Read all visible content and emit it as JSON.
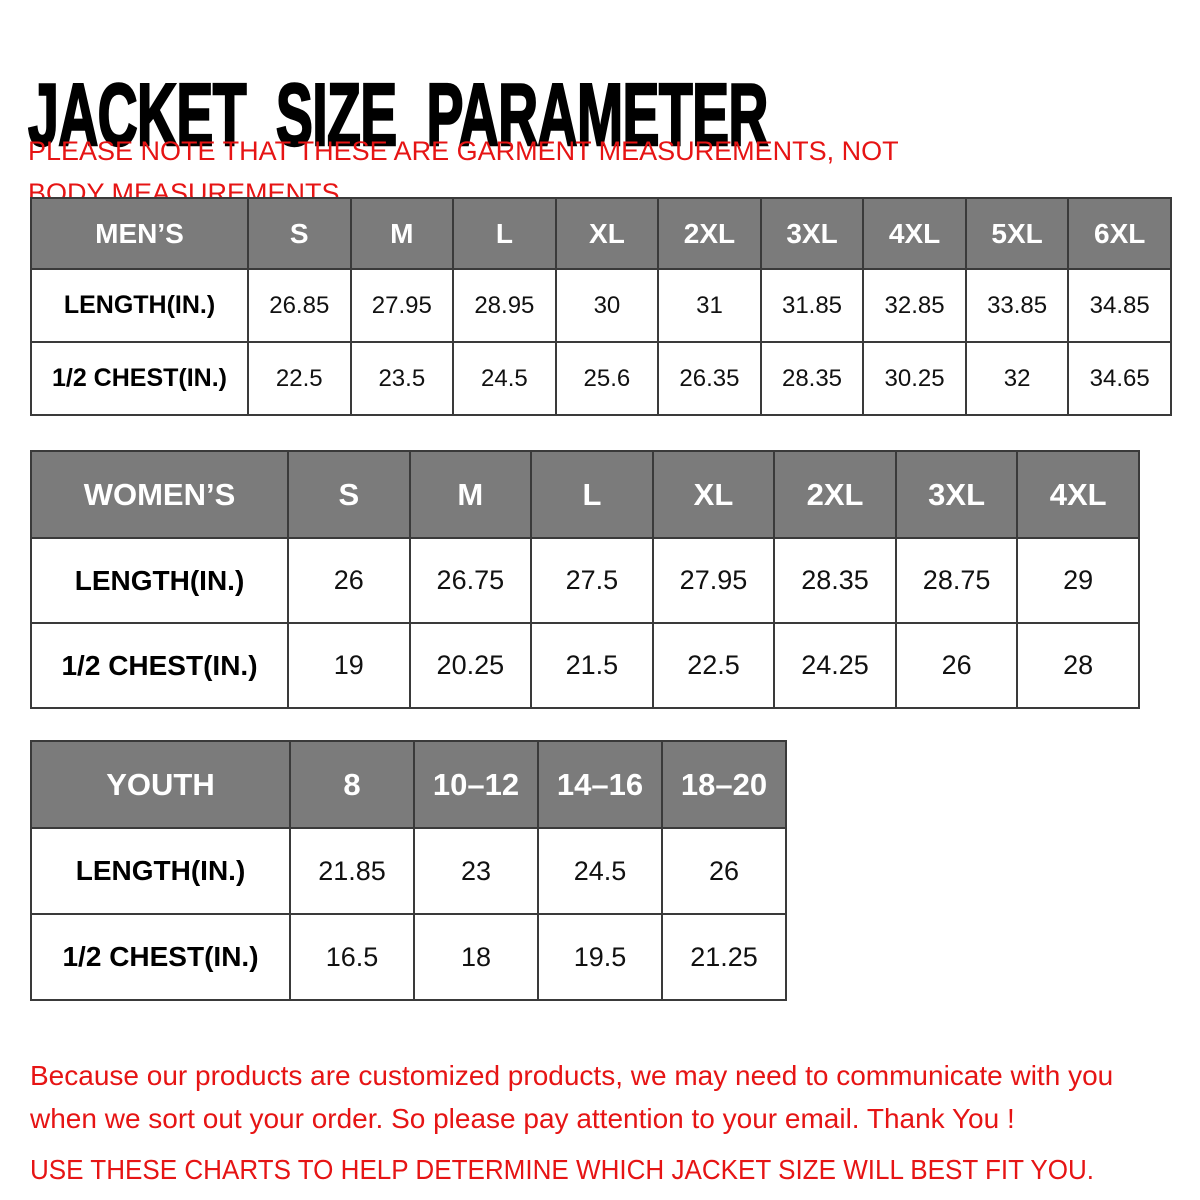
{
  "page": {
    "title": "JACKET SIZE PARAMETER",
    "note": "PLEASE NOTE THAT THESE ARE GARMENT MEASUREMENTS, NOT BODY MEASUREMENTS",
    "footer_paragraph": "Because our products are customized products, we may need to communicate with you when we sort out your order. So please pay attention to your email. Thank You !",
    "footer_advice": "USE THESE CHARTS TO HELP DETERMINE WHICH JACKET SIZE WILL BEST FIT YOU."
  },
  "colors": {
    "accent_red": "#e61414",
    "header_gray": "#7b7b7b",
    "border_dark": "#3a3a3a",
    "title_black": "#000000"
  },
  "chart_data": [
    {
      "type": "table",
      "title": "MEN’S",
      "columns": [
        "S",
        "M",
        "L",
        "XL",
        "2XL",
        "3XL",
        "4XL",
        "5XL",
        "6XL"
      ],
      "rows": [
        {
          "label": "LENGTH(IN.)",
          "values": [
            "26.85",
            "27.95",
            "28.95",
            "30",
            "31",
            "31.85",
            "32.85",
            "33.85",
            "34.85"
          ]
        },
        {
          "label": "1/2 CHEST(IN.)",
          "values": [
            "22.5",
            "23.5",
            "24.5",
            "25.6",
            "26.35",
            "28.35",
            "30.25",
            "32",
            "34.65"
          ]
        }
      ]
    },
    {
      "type": "table",
      "title": "WOMEN’S",
      "columns": [
        "S",
        "M",
        "L",
        "XL",
        "2XL",
        "3XL",
        "4XL"
      ],
      "rows": [
        {
          "label": "LENGTH(IN.)",
          "values": [
            "26",
            "26.75",
            "27.5",
            "27.95",
            "28.35",
            "28.75",
            "29"
          ]
        },
        {
          "label": "1/2 CHEST(IN.)",
          "values": [
            "19",
            "20.25",
            "21.5",
            "22.5",
            "24.25",
            "26",
            "28"
          ]
        }
      ]
    },
    {
      "type": "table",
      "title": "YOUTH",
      "columns": [
        "8",
        "10–12",
        "14–16",
        "18–20"
      ],
      "rows": [
        {
          "label": "LENGTH(IN.)",
          "values": [
            "21.85",
            "23",
            "24.5",
            "26"
          ]
        },
        {
          "label": "1/2 CHEST(IN.)",
          "values": [
            "16.5",
            "18",
            "19.5",
            "21.25"
          ]
        }
      ]
    }
  ]
}
